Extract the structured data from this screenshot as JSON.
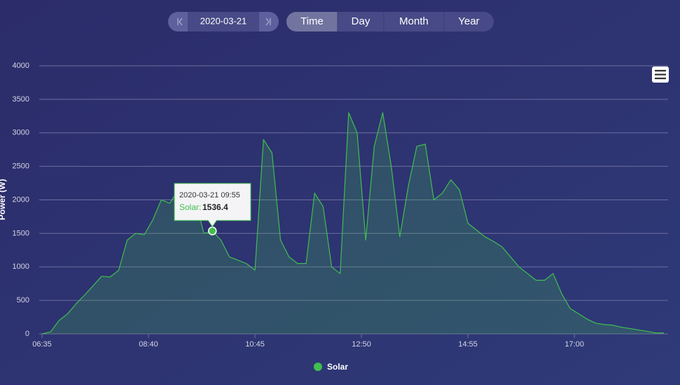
{
  "controls": {
    "date": "2020-03-21",
    "tabs": [
      "Time",
      "Day",
      "Month",
      "Year"
    ],
    "active": 0
  },
  "chart_data": {
    "type": "area",
    "ylabel": "Power (W)",
    "x": [
      "06:35",
      "06:45",
      "06:55",
      "07:05",
      "07:15",
      "07:25",
      "07:35",
      "07:45",
      "07:55",
      "08:05",
      "08:15",
      "08:25",
      "08:35",
      "08:45",
      "08:55",
      "09:05",
      "09:15",
      "09:25",
      "09:35",
      "09:45",
      "09:55",
      "10:05",
      "10:15",
      "10:25",
      "10:35",
      "10:45",
      "10:55",
      "11:05",
      "11:15",
      "11:25",
      "11:35",
      "11:45",
      "11:55",
      "12:05",
      "12:15",
      "12:25",
      "12:35",
      "12:45",
      "12:55",
      "13:05",
      "13:15",
      "13:25",
      "13:35",
      "13:45",
      "13:55",
      "14:05",
      "14:15",
      "14:25",
      "14:35",
      "14:45",
      "14:55",
      "15:05",
      "15:15",
      "15:25",
      "15:35",
      "15:45",
      "15:55",
      "16:05",
      "16:15",
      "16:25",
      "16:35",
      "16:45",
      "16:55",
      "17:05",
      "17:15",
      "17:25",
      "17:35",
      "17:45",
      "17:55",
      "18:05",
      "18:15",
      "18:25",
      "18:35",
      "18:45"
    ],
    "series": [
      {
        "name": "Solar",
        "color": "#3fbf4f",
        "values": [
          0,
          30,
          200,
          300,
          450,
          580,
          720,
          860,
          850,
          950,
          1400,
          1500,
          1480,
          1700,
          2000,
          1950,
          2150,
          2050,
          2000,
          1500,
          1536.4,
          1400,
          1150,
          1100,
          1050,
          950,
          2900,
          2700,
          1400,
          1150,
          1050,
          1050,
          2100,
          1900,
          1000,
          900,
          3300,
          3000,
          1400,
          2800,
          3300,
          2500,
          1450,
          2200,
          2800,
          2830,
          2000,
          2100,
          2300,
          2150,
          1650,
          1550,
          1450,
          1380,
          1300,
          1150,
          1000,
          900,
          800,
          800,
          900,
          600,
          380,
          300,
          220,
          160,
          140,
          130,
          100,
          80,
          60,
          40,
          15,
          15
        ]
      }
    ],
    "xlim": [
      "06:35",
      "18:50"
    ],
    "xticks": [
      "06:35",
      "08:40",
      "10:45",
      "12:50",
      "14:55",
      "17:00"
    ],
    "ylim": [
      0,
      4000
    ],
    "yticks": [
      0,
      500,
      1000,
      1500,
      2000,
      2500,
      3000,
      3500,
      4000
    ],
    "grid": true,
    "legend": "bottom",
    "tooltip": {
      "index": 20,
      "title": "2020-03-21 09:55",
      "label": "Solar:"
    }
  }
}
